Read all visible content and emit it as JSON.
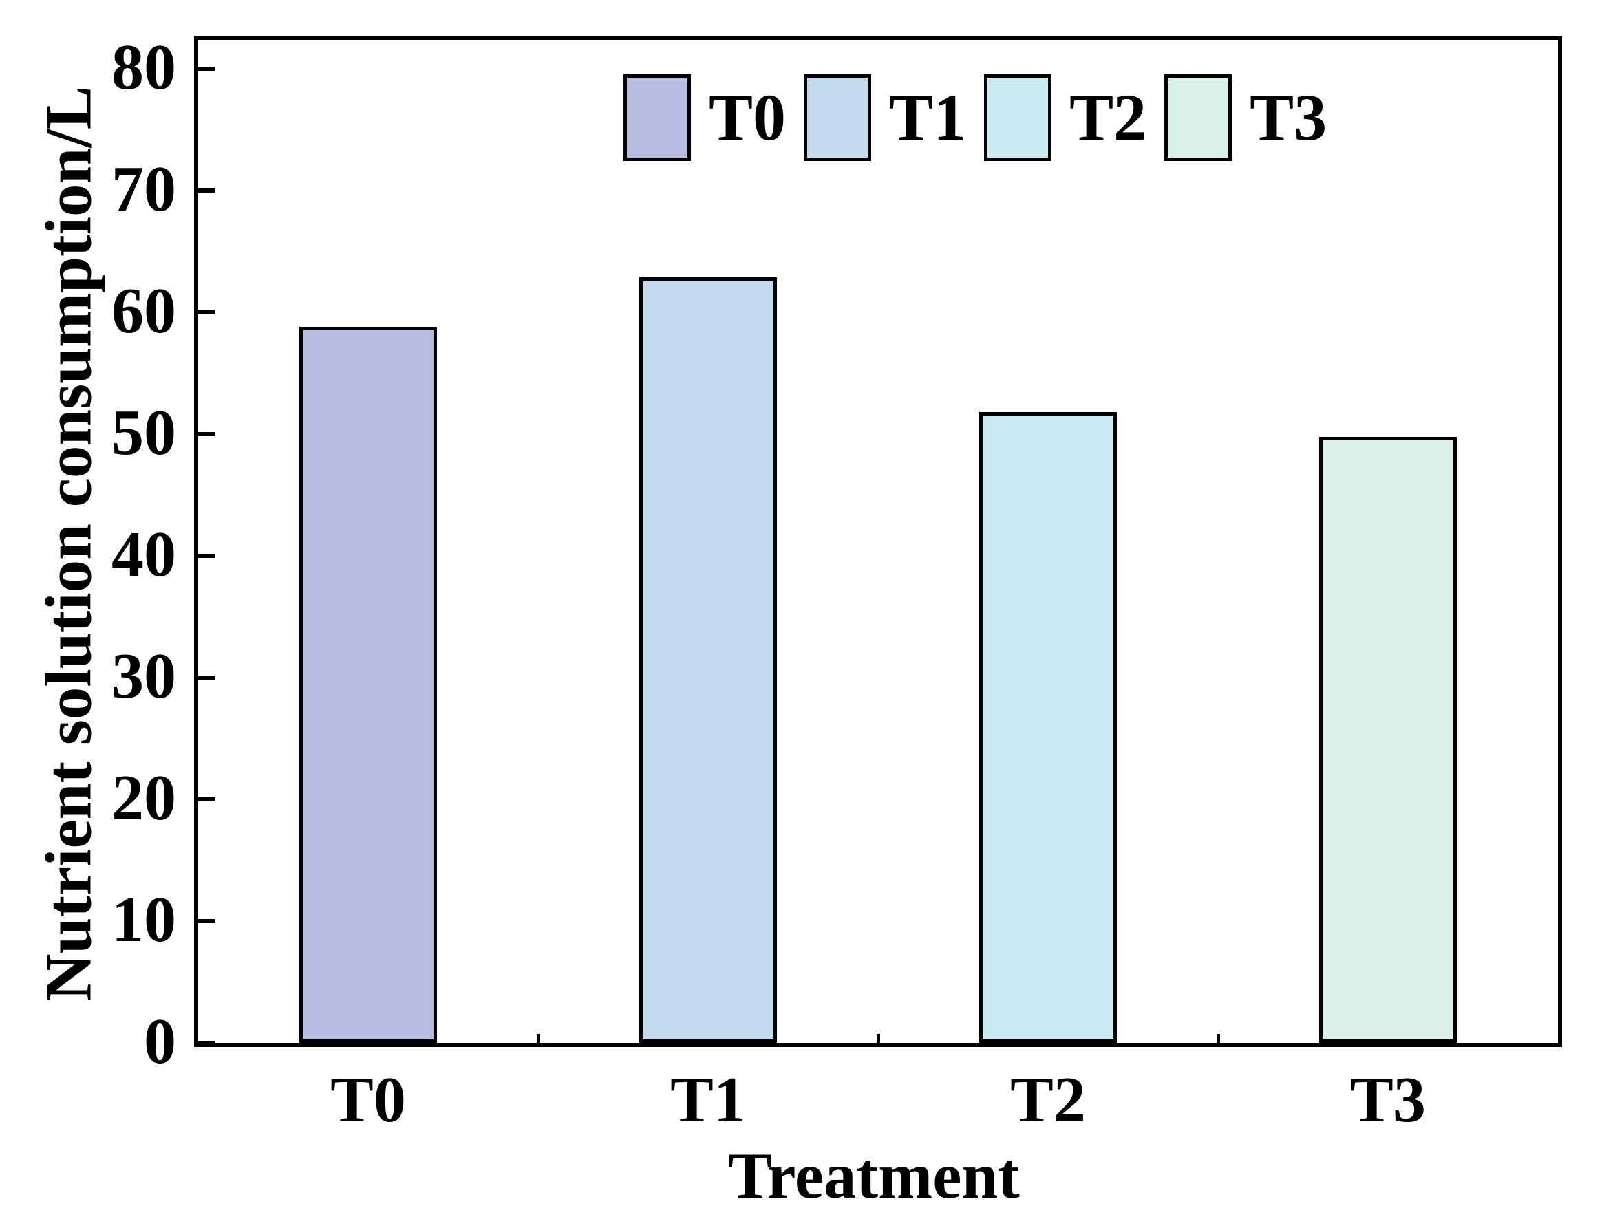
{
  "chart_data": {
    "type": "bar",
    "title": "",
    "xlabel": "Treatment",
    "ylabel": "Nutrient solution consumption/L",
    "categories": [
      "T0",
      "T1",
      "T2",
      "T3"
    ],
    "values": [
      58.8,
      62.9,
      51.8,
      49.8
    ],
    "bar_colors": [
      "#b6bde0",
      "#c3daef",
      "#c9eaf0",
      "#d8efea"
    ],
    "bar_border_color": "#000000",
    "ylim": [
      0,
      80
    ],
    "yticks": [
      0,
      10,
      20,
      30,
      40,
      50,
      60,
      70,
      80
    ],
    "grid": false,
    "legend": {
      "position": "top-inside",
      "entries": [
        {
          "label": "T0",
          "color": "#b6bde0"
        },
        {
          "label": "T1",
          "color": "#c3daef"
        },
        {
          "label": "T2",
          "color": "#c9eaf0"
        },
        {
          "label": "T3",
          "color": "#d8efea"
        }
      ]
    }
  }
}
